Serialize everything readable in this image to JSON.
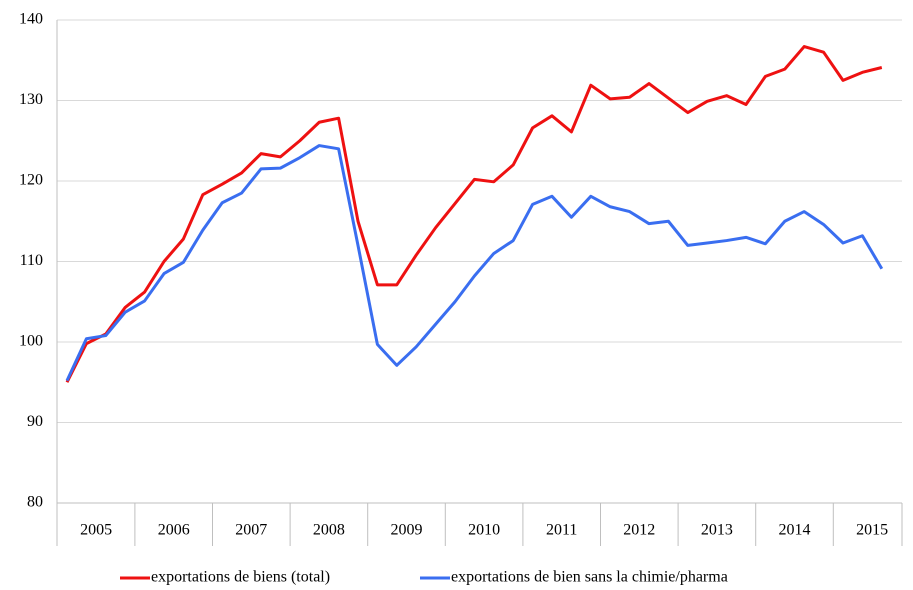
{
  "chart_data": {
    "type": "line",
    "categories": [
      null,
      "2005",
      null,
      null,
      null,
      "2006",
      null,
      null,
      null,
      "2007",
      null,
      null,
      null,
      "2008",
      null,
      null,
      null,
      "2009",
      null,
      null,
      null,
      "2010",
      null,
      null,
      null,
      "2011",
      null,
      null,
      null,
      "2012",
      null,
      null,
      null,
      "2013",
      null,
      null,
      null,
      "2014",
      null,
      null,
      null,
      "2015",
      null
    ],
    "series": [
      {
        "name": "exportations de biens (total)",
        "color": "#ee1111",
        "values": [
          95.0,
          99.8,
          101.0,
          104.3,
          106.2,
          110.0,
          112.8,
          118.3,
          119.6,
          121.0,
          123.4,
          123.0,
          125.0,
          127.3,
          127.8,
          115.0,
          107.1,
          107.1,
          110.8,
          114.2,
          117.2,
          120.2,
          119.9,
          122.0,
          126.6,
          128.1,
          126.1,
          131.9,
          130.2,
          130.4,
          132.1,
          130.3,
          128.5,
          129.9,
          130.6,
          129.5,
          133.0,
          133.9,
          136.7,
          136.0,
          132.5,
          133.5,
          134.1
        ]
      },
      {
        "name": "exportations de bien sans la chimie/pharma",
        "color": "#3a6ef0",
        "values": [
          95.2,
          100.4,
          100.8,
          103.7,
          105.1,
          108.5,
          109.9,
          113.9,
          117.3,
          118.5,
          121.5,
          121.6,
          122.9,
          124.4,
          124.0,
          112.0,
          99.7,
          97.1,
          99.4,
          102.2,
          105.0,
          108.2,
          111.0,
          112.6,
          117.1,
          118.1,
          115.5,
          118.1,
          116.8,
          116.2,
          114.7,
          115.0,
          112.0,
          112.3,
          112.6,
          113.0,
          112.2,
          115.0,
          116.2,
          114.6,
          112.3,
          113.2,
          109.1
        ]
      }
    ],
    "ylim": [
      80,
      140
    ],
    "yticks": [
      80,
      90,
      100,
      110,
      120,
      130,
      140
    ],
    "grid": true,
    "legend": "bottom"
  }
}
